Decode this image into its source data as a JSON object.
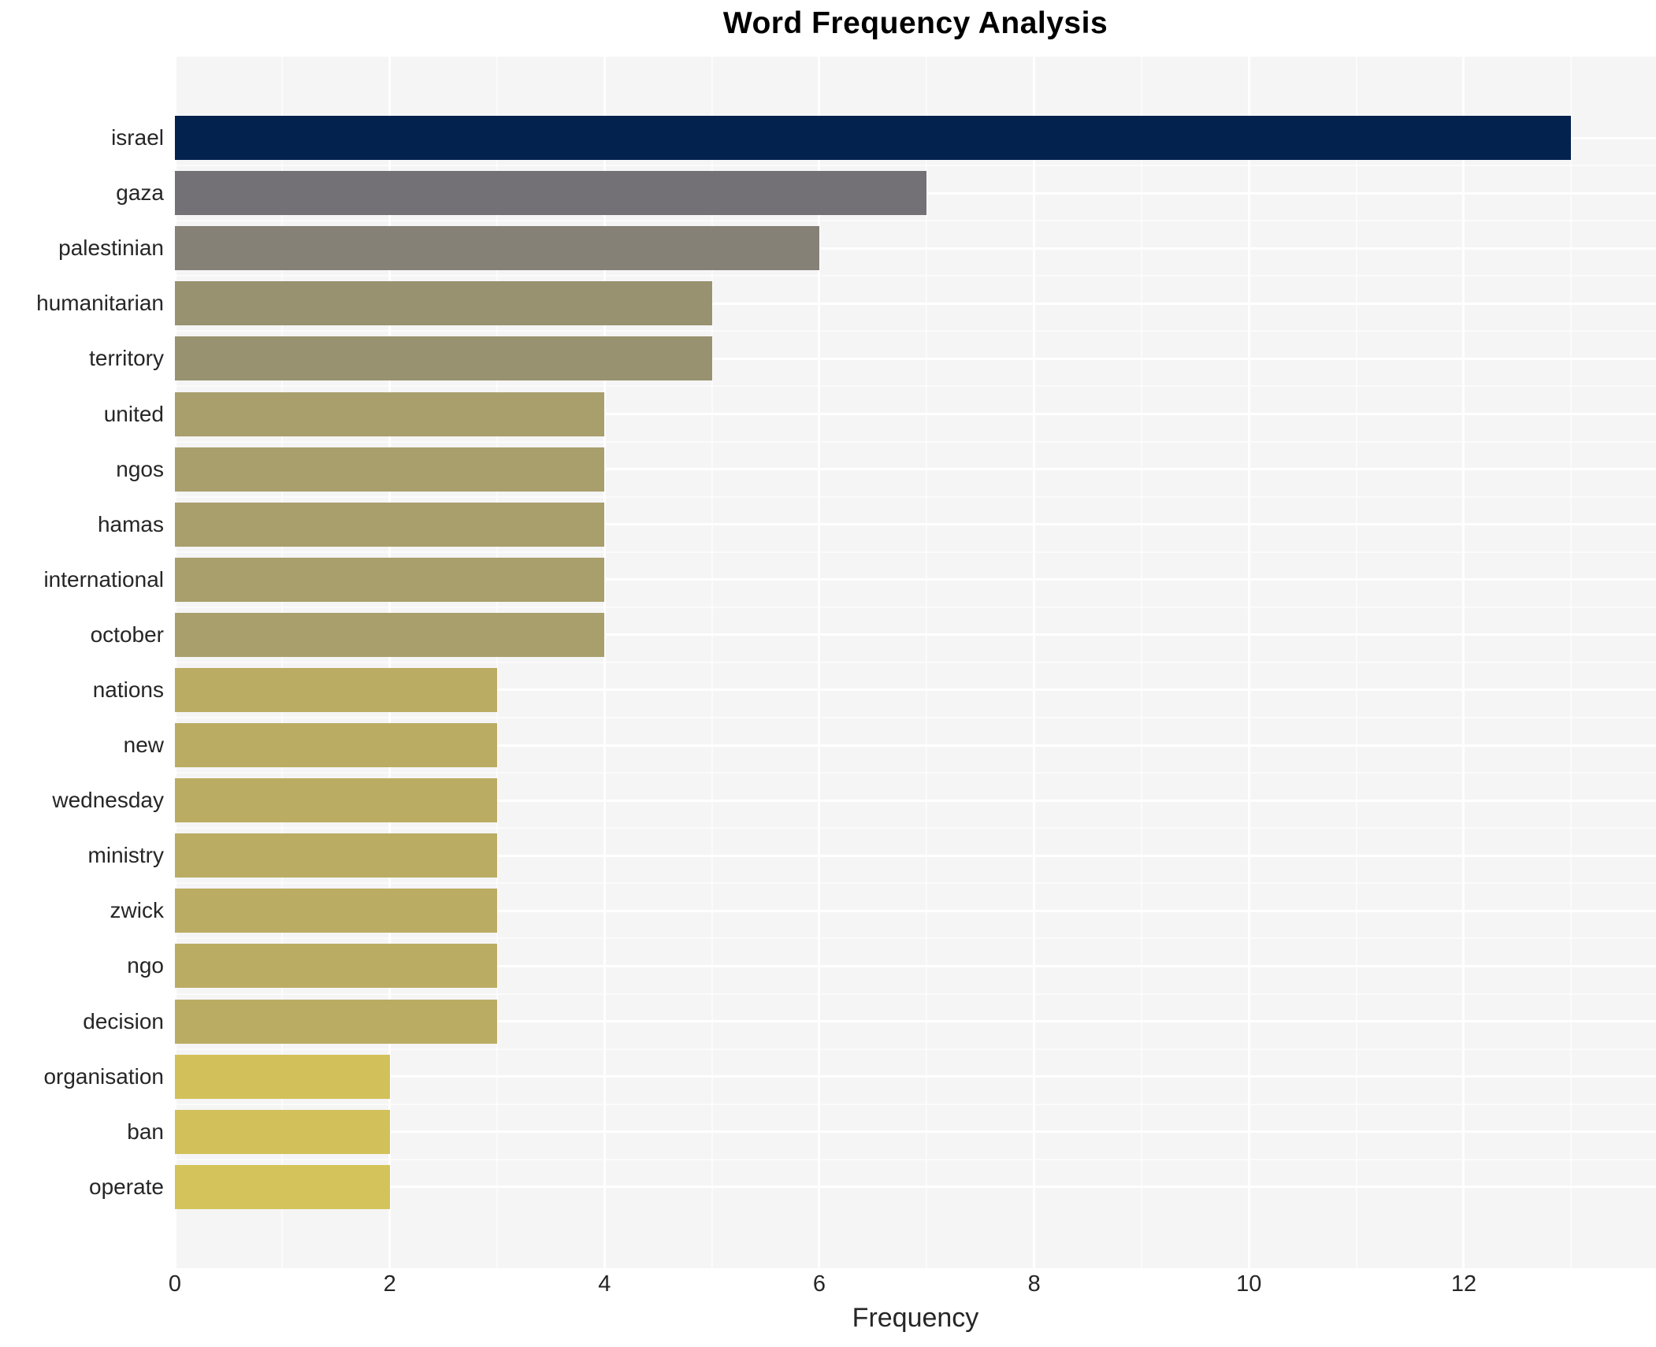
{
  "title": "Word Frequency Analysis",
  "chart_data": {
    "type": "bar",
    "orientation": "horizontal",
    "title": "Word Frequency Analysis",
    "xlabel": "Frequency",
    "ylabel": "",
    "categories": [
      "israel",
      "gaza",
      "palestinian",
      "humanitarian",
      "territory",
      "united",
      "ngos",
      "hamas",
      "international",
      "october",
      "nations",
      "new",
      "wednesday",
      "ministry",
      "zwick",
      "ngo",
      "decision",
      "organisation",
      "ban",
      "operate"
    ],
    "values": [
      13,
      7,
      6,
      5,
      5,
      4,
      4,
      4,
      4,
      4,
      3,
      3,
      3,
      3,
      3,
      3,
      3,
      2,
      2,
      2
    ],
    "bar_colors": [
      "#04224e",
      "#737176",
      "#868177",
      "#989270",
      "#989270",
      "#a99f6c",
      "#a99f6c",
      "#a99f6c",
      "#a99f6c",
      "#a99f6c",
      "#bbac63",
      "#bbac63",
      "#bbac63",
      "#bbac63",
      "#bbac63",
      "#bbac63",
      "#bbac63",
      "#d2c15a",
      "#d2c15a",
      "#d4c35a"
    ],
    "x_ticks": [
      0,
      2,
      4,
      6,
      8,
      10,
      12
    ],
    "x_minor_ticks": [
      1,
      3,
      5,
      7,
      9,
      11,
      13
    ],
    "xlim": [
      0,
      13.79
    ],
    "grid": true,
    "legend_position": "none",
    "panel_background": "#f5f5f6",
    "grid_major_color": "#ffffff",
    "grid_minor_color": "rgba(255,255,255,0.55)",
    "tick_text_color": "#262626",
    "title_color": "#000000"
  }
}
